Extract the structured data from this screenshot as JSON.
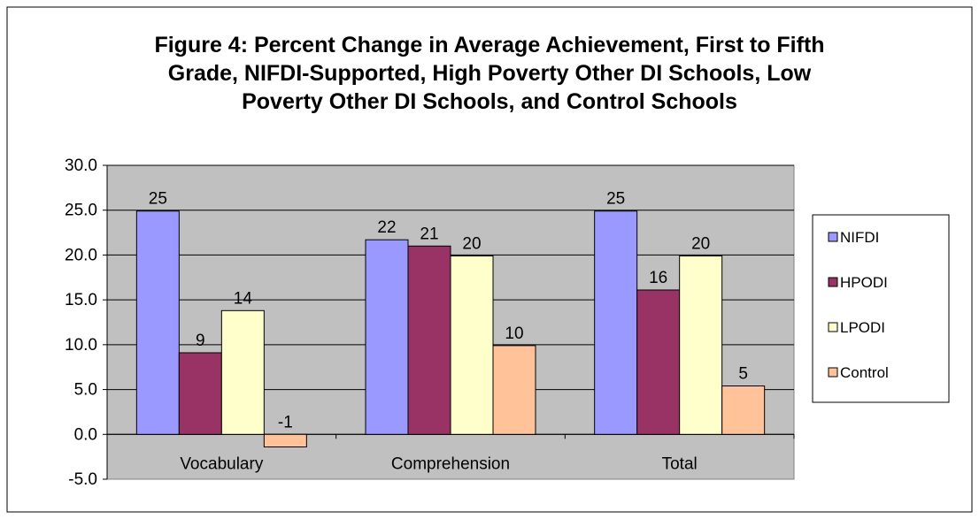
{
  "chart_data": {
    "type": "bar",
    "title_lines": [
      "Figure 4: Percent Change in Average Achievement, First to Fifth",
      "Grade, NIFDI-Supported, High Poverty Other DI Schools, Low",
      "Poverty Other DI Schools, and Control Schools"
    ],
    "categories": [
      "Vocabulary",
      "Comprehension",
      "Total"
    ],
    "series": [
      {
        "name": "NIFDI",
        "values": [
          24.9,
          21.7,
          24.9
        ],
        "labels": [
          "25",
          "22",
          "25"
        ],
        "color": "#9999ff"
      },
      {
        "name": "HPODI",
        "values": [
          9.1,
          21.0,
          16.1
        ],
        "labels": [
          "9",
          "21",
          "16"
        ],
        "color": "#993366"
      },
      {
        "name": "LPODI",
        "values": [
          13.8,
          19.9,
          19.9
        ],
        "labels": [
          "14",
          "20",
          "20"
        ],
        "color": "#ffffcc"
      },
      {
        "name": "Control",
        "values": [
          -1.4,
          9.9,
          5.4
        ],
        "labels": [
          "-1",
          "10",
          "5"
        ],
        "color": "#ffc299"
      }
    ],
    "ylim": [
      -5,
      30
    ],
    "yticks": [
      "-5.0",
      "0.0",
      "5.0",
      "10.0",
      "15.0",
      "20.0",
      "25.0",
      "30.0"
    ],
    "ytick_values": [
      -5,
      0,
      5,
      10,
      15,
      20,
      25,
      30
    ],
    "grid": true,
    "plot_background": "#c0c0c0",
    "legend_position": "right"
  }
}
